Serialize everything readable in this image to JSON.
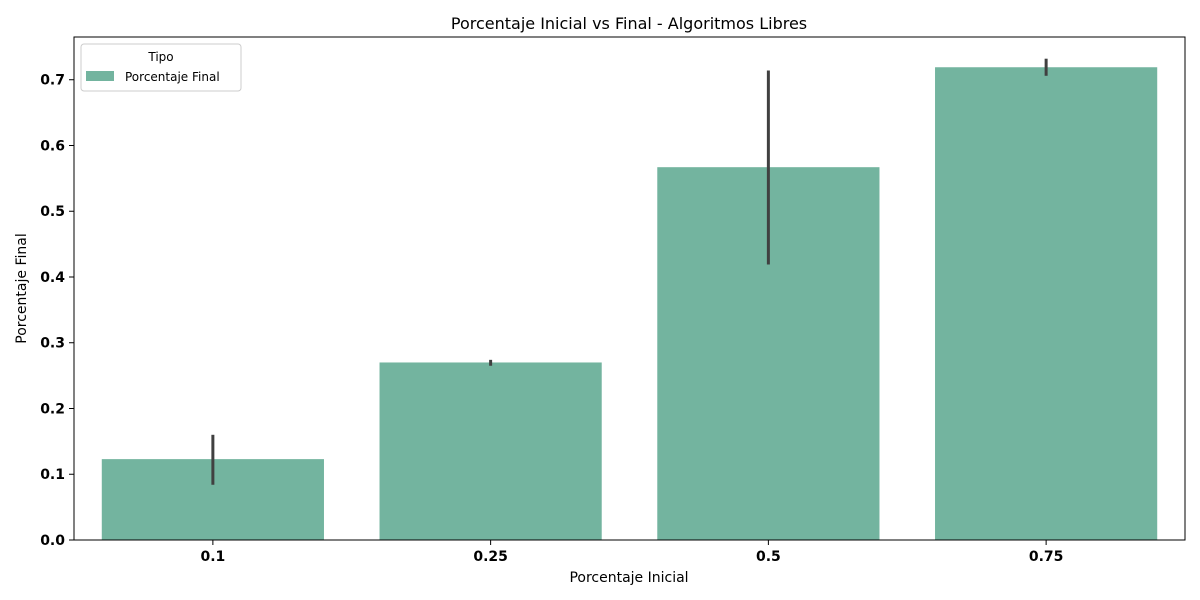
{
  "chart_data": {
    "type": "bar",
    "title": "Porcentaje Inicial vs Final - Algoritmos Libres",
    "xlabel": "Porcentaje Inicial",
    "ylabel": "Porcentaje Final",
    "categories": [
      "0.1",
      "0.25",
      "0.5",
      "0.75"
    ],
    "series": [
      {
        "name": "Porcentaje Final",
        "values": [
          0.123,
          0.27,
          0.567,
          0.719
        ],
        "error_low": [
          0.084,
          0.265,
          0.419,
          0.706
        ],
        "error_high": [
          0.16,
          0.274,
          0.714,
          0.732
        ],
        "color": "#73b49f"
      }
    ],
    "ylim": [
      0,
      0.765
    ],
    "yticks": [
      0.0,
      0.1,
      0.2,
      0.3,
      0.4,
      0.5,
      0.6,
      0.7
    ],
    "ytick_labels": [
      "0.0",
      "0.1",
      "0.2",
      "0.3",
      "0.4",
      "0.5",
      "0.6",
      "0.7"
    ],
    "legend": {
      "title": "Tipo",
      "placement": "top-left"
    },
    "grid": false,
    "error_bar_color": "#404040"
  }
}
